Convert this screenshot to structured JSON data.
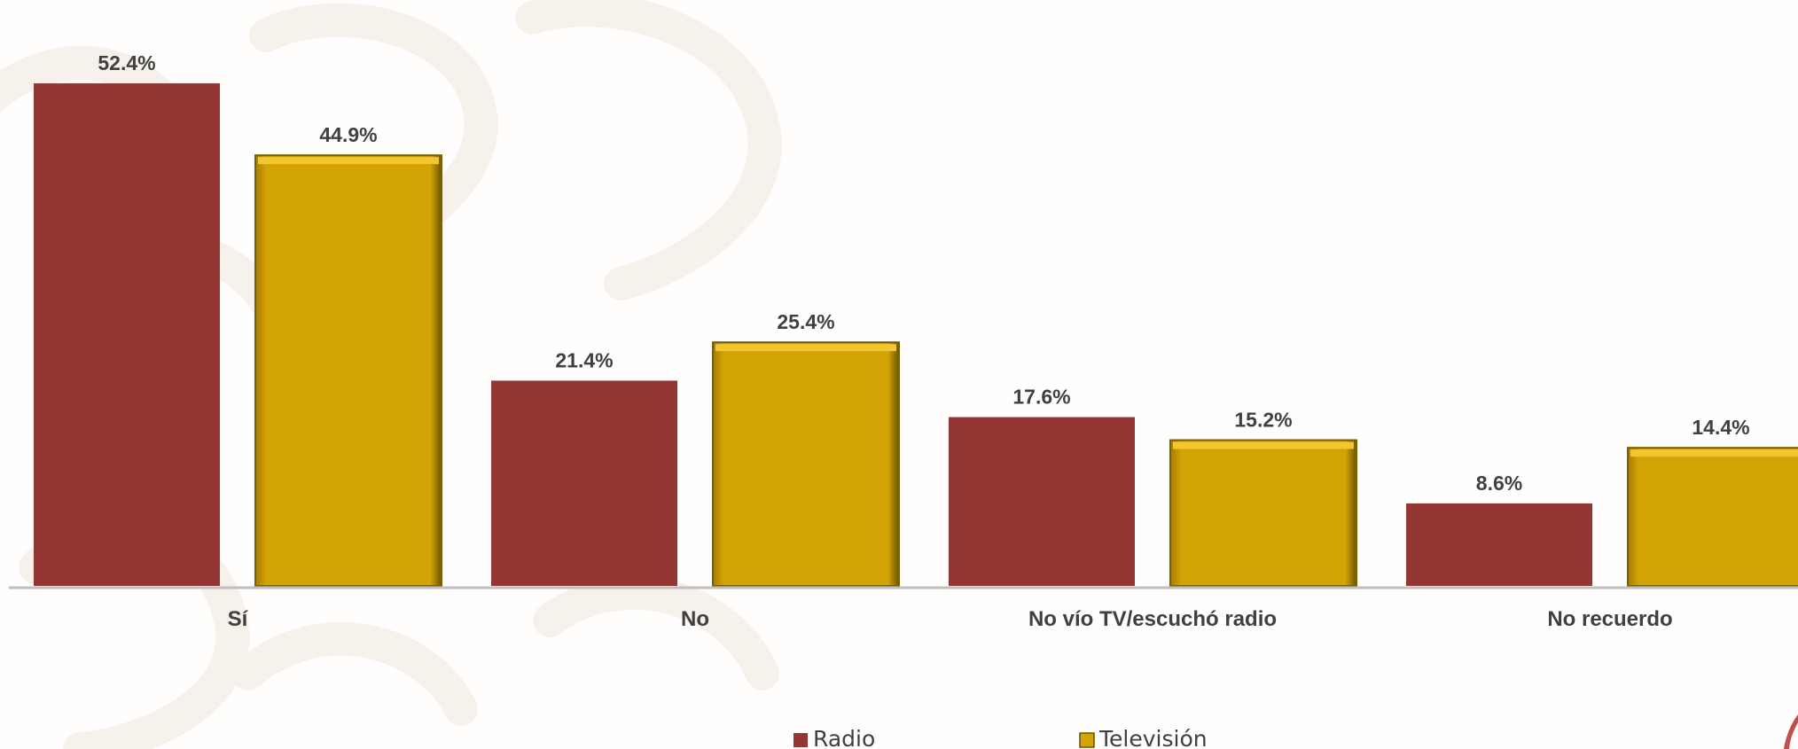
{
  "chart_data": {
    "type": "bar",
    "categories": [
      "Sí",
      "No",
      "No vío TV/escuchó radio",
      "No recuerdo"
    ],
    "series": [
      {
        "name": "Radio",
        "values": [
          52.4,
          21.4,
          17.6,
          8.6
        ],
        "labels": [
          "52.4%",
          "21.4%",
          "17.6%",
          "8.6%"
        ],
        "color": "#943634"
      },
      {
        "name": "Televisión",
        "values": [
          44.9,
          25.4,
          15.2,
          14.4
        ],
        "labels": [
          "44.9%",
          "25.4%",
          "15.2%",
          "14.4%"
        ],
        "color": "#d4a406"
      }
    ],
    "ylim": [
      0,
      55
    ],
    "grid": false,
    "legend_position": "bottom"
  }
}
